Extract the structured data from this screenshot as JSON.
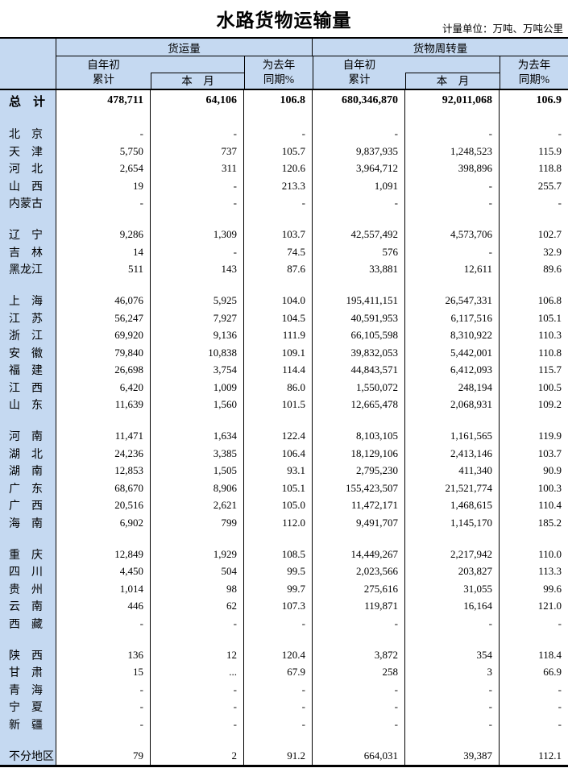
{
  "title": "水路货物运输量",
  "unit_note": "计量单位：万吨、万吨公里",
  "colors": {
    "header_bg": "#c5d9f1",
    "border": "#000000",
    "text": "#000000"
  },
  "header": {
    "group1": "货运量",
    "group2": "货物周转量",
    "cum_line1": "自年初",
    "cum_line2": "累计",
    "month": "本　月",
    "yoy_line1": "为去年",
    "yoy_line2": "同期%"
  },
  "body": {
    "rows": [
      {
        "t": "total",
        "label": "总　计",
        "v": [
          "478,711",
          "64,106",
          "106.8",
          "680,346,870",
          "92,011,068",
          "106.9"
        ]
      },
      {
        "t": "blank"
      },
      {
        "t": "d",
        "label": "北　京",
        "v": [
          "-",
          "-",
          "-",
          "-",
          "-",
          "-"
        ]
      },
      {
        "t": "d",
        "label": "天　津",
        "v": [
          "5,750",
          "737",
          "105.7",
          "9,837,935",
          "1,248,523",
          "115.9"
        ]
      },
      {
        "t": "d",
        "label": "河　北",
        "v": [
          "2,654",
          "311",
          "120.6",
          "3,964,712",
          "398,896",
          "118.8"
        ]
      },
      {
        "t": "d",
        "label": "山　西",
        "v": [
          "19",
          "-",
          "213.3",
          "1,091",
          "-",
          "255.7"
        ]
      },
      {
        "t": "d",
        "label": "内蒙古",
        "v": [
          "-",
          "-",
          "-",
          "-",
          "-",
          "-"
        ]
      },
      {
        "t": "blank"
      },
      {
        "t": "d",
        "label": "辽　宁",
        "v": [
          "9,286",
          "1,309",
          "103.7",
          "42,557,492",
          "4,573,706",
          "102.7"
        ]
      },
      {
        "t": "d",
        "label": "吉　林",
        "v": [
          "14",
          "-",
          "74.5",
          "576",
          "-",
          "32.9"
        ]
      },
      {
        "t": "d",
        "label": "黑龙江",
        "v": [
          "511",
          "143",
          "87.6",
          "33,881",
          "12,611",
          "89.6"
        ]
      },
      {
        "t": "blank"
      },
      {
        "t": "d",
        "label": "上　海",
        "v": [
          "46,076",
          "5,925",
          "104.0",
          "195,411,151",
          "26,547,331",
          "106.8"
        ]
      },
      {
        "t": "d",
        "label": "江　苏",
        "v": [
          "56,247",
          "7,927",
          "104.5",
          "40,591,953",
          "6,117,516",
          "105.1"
        ]
      },
      {
        "t": "d",
        "label": "浙　江",
        "v": [
          "69,920",
          "9,136",
          "111.9",
          "66,105,598",
          "8,310,922",
          "110.3"
        ]
      },
      {
        "t": "d",
        "label": "安　徽",
        "v": [
          "79,840",
          "10,838",
          "109.1",
          "39,832,053",
          "5,442,001",
          "110.8"
        ]
      },
      {
        "t": "d",
        "label": "福　建",
        "v": [
          "26,698",
          "3,754",
          "114.4",
          "44,843,571",
          "6,412,093",
          "115.7"
        ]
      },
      {
        "t": "d",
        "label": "江　西",
        "v": [
          "6,420",
          "1,009",
          "86.0",
          "1,550,072",
          "248,194",
          "100.5"
        ]
      },
      {
        "t": "d",
        "label": "山　东",
        "v": [
          "11,639",
          "1,560",
          "101.5",
          "12,665,478",
          "2,068,931",
          "109.2"
        ]
      },
      {
        "t": "blank"
      },
      {
        "t": "d",
        "label": "河　南",
        "v": [
          "11,471",
          "1,634",
          "122.4",
          "8,103,105",
          "1,161,565",
          "119.9"
        ]
      },
      {
        "t": "d",
        "label": "湖　北",
        "v": [
          "24,236",
          "3,385",
          "106.4",
          "18,129,106",
          "2,413,146",
          "103.7"
        ]
      },
      {
        "t": "d",
        "label": "湖　南",
        "v": [
          "12,853",
          "1,505",
          "93.1",
          "2,795,230",
          "411,340",
          "90.9"
        ]
      },
      {
        "t": "d",
        "label": "广　东",
        "v": [
          "68,670",
          "8,906",
          "105.1",
          "155,423,507",
          "21,521,774",
          "100.3"
        ]
      },
      {
        "t": "d",
        "label": "广　西",
        "v": [
          "20,516",
          "2,621",
          "105.0",
          "11,472,171",
          "1,468,615",
          "110.4"
        ]
      },
      {
        "t": "d",
        "label": "海　南",
        "v": [
          "6,902",
          "799",
          "112.0",
          "9,491,707",
          "1,145,170",
          "185.2"
        ]
      },
      {
        "t": "blank"
      },
      {
        "t": "d",
        "label": "重　庆",
        "v": [
          "12,849",
          "1,929",
          "108.5",
          "14,449,267",
          "2,217,942",
          "110.0"
        ]
      },
      {
        "t": "d",
        "label": "四　川",
        "v": [
          "4,450",
          "504",
          "99.5",
          "2,023,566",
          "203,827",
          "113.3"
        ]
      },
      {
        "t": "d",
        "label": "贵　州",
        "v": [
          "1,014",
          "98",
          "99.7",
          "275,616",
          "31,055",
          "99.6"
        ]
      },
      {
        "t": "d",
        "label": "云　南",
        "v": [
          "446",
          "62",
          "107.3",
          "119,871",
          "16,164",
          "121.0"
        ]
      },
      {
        "t": "d",
        "label": "西　藏",
        "v": [
          "-",
          "-",
          "-",
          "-",
          "-",
          "-"
        ]
      },
      {
        "t": "blank"
      },
      {
        "t": "d",
        "label": "陕　西",
        "v": [
          "136",
          "12",
          "120.4",
          "3,872",
          "354",
          "118.4"
        ]
      },
      {
        "t": "d",
        "label": "甘　肃",
        "v": [
          "15",
          "...",
          "67.9",
          "258",
          "3",
          "66.9"
        ]
      },
      {
        "t": "d",
        "label": "青　海",
        "v": [
          "-",
          "-",
          "-",
          "-",
          "-",
          "-"
        ]
      },
      {
        "t": "d",
        "label": "宁　夏",
        "v": [
          "-",
          "-",
          "-",
          "-",
          "-",
          "-"
        ]
      },
      {
        "t": "d",
        "label": "新　疆",
        "v": [
          "-",
          "-",
          "-",
          "-",
          "-",
          "-"
        ]
      },
      {
        "t": "blank"
      },
      {
        "t": "d",
        "label": "不分地区",
        "v": [
          "79",
          "2",
          "91.2",
          "664,031",
          "39,387",
          "112.1"
        ]
      }
    ]
  }
}
